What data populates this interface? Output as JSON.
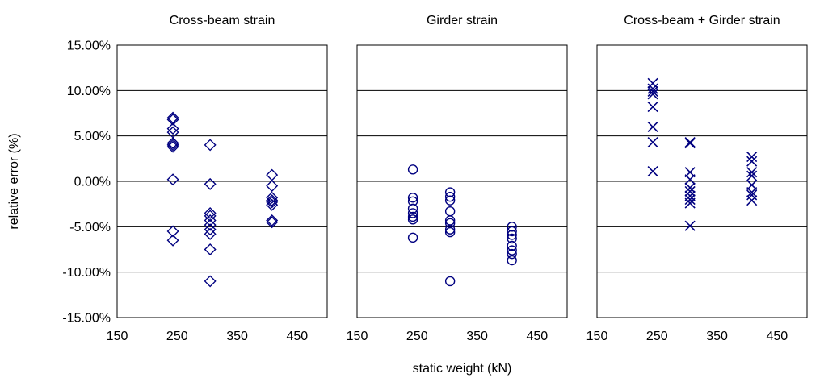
{
  "chart_data": {
    "type": "scatter",
    "xlabel": "static weight (kN)",
    "ylabel": "relative error (%)",
    "xlim": [
      150,
      500
    ],
    "ylim": [
      -15,
      15
    ],
    "xticks": [
      "150",
      "250",
      "350",
      "450"
    ],
    "yticks": [
      "15.00%",
      "10.00%",
      "5.00%",
      "0.00%",
      "-5.00%",
      "-10.00%",
      "-15.00%"
    ],
    "grid": "horizontal",
    "marker_color": "#000080",
    "panels": [
      {
        "title": "Cross-beam strain",
        "marker": "diamond",
        "points": [
          {
            "x": 243,
            "y": 7.0
          },
          {
            "x": 243,
            "y": 6.8
          },
          {
            "x": 243,
            "y": 5.8
          },
          {
            "x": 243,
            "y": 5.4
          },
          {
            "x": 243,
            "y": 4.2
          },
          {
            "x": 243,
            "y": 4.0
          },
          {
            "x": 243,
            "y": 3.8
          },
          {
            "x": 243,
            "y": 0.2
          },
          {
            "x": 243,
            "y": -5.5
          },
          {
            "x": 243,
            "y": -6.5
          },
          {
            "x": 305,
            "y": 4.0
          },
          {
            "x": 305,
            "y": -0.3
          },
          {
            "x": 305,
            "y": -3.5
          },
          {
            "x": 305,
            "y": -3.8
          },
          {
            "x": 305,
            "y": -4.3
          },
          {
            "x": 305,
            "y": -4.8
          },
          {
            "x": 305,
            "y": -5.3
          },
          {
            "x": 305,
            "y": -5.8
          },
          {
            "x": 305,
            "y": -7.5
          },
          {
            "x": 305,
            "y": -11.0
          },
          {
            "x": 408,
            "y": 0.7
          },
          {
            "x": 408,
            "y": -0.5
          },
          {
            "x": 408,
            "y": -1.8
          },
          {
            "x": 408,
            "y": -2.1
          },
          {
            "x": 408,
            "y": -2.3
          },
          {
            "x": 408,
            "y": -2.6
          },
          {
            "x": 408,
            "y": -4.3
          },
          {
            "x": 408,
            "y": -4.5
          }
        ]
      },
      {
        "title": "Girder strain",
        "marker": "circle",
        "points": [
          {
            "x": 243,
            "y": 1.3
          },
          {
            "x": 243,
            "y": -1.8
          },
          {
            "x": 243,
            "y": -2.2
          },
          {
            "x": 243,
            "y": -3.0
          },
          {
            "x": 243,
            "y": -3.5
          },
          {
            "x": 243,
            "y": -3.9
          },
          {
            "x": 243,
            "y": -4.2
          },
          {
            "x": 243,
            "y": -6.2
          },
          {
            "x": 305,
            "y": -1.2
          },
          {
            "x": 305,
            "y": -1.7
          },
          {
            "x": 305,
            "y": -2.1
          },
          {
            "x": 305,
            "y": -3.3
          },
          {
            "x": 305,
            "y": -4.3
          },
          {
            "x": 305,
            "y": -4.6
          },
          {
            "x": 305,
            "y": -5.3
          },
          {
            "x": 305,
            "y": -5.6
          },
          {
            "x": 305,
            "y": -11.0
          },
          {
            "x": 408,
            "y": -5.0
          },
          {
            "x": 408,
            "y": -5.5
          },
          {
            "x": 408,
            "y": -5.9
          },
          {
            "x": 408,
            "y": -6.3
          },
          {
            "x": 408,
            "y": -7.1
          },
          {
            "x": 408,
            "y": -7.6
          },
          {
            "x": 408,
            "y": -8.0
          },
          {
            "x": 408,
            "y": -8.7
          }
        ]
      },
      {
        "title": "Cross-beam + Girder strain",
        "marker": "x",
        "points": [
          {
            "x": 243,
            "y": 10.8
          },
          {
            "x": 243,
            "y": 10.2
          },
          {
            "x": 243,
            "y": 9.9
          },
          {
            "x": 243,
            "y": 9.6
          },
          {
            "x": 243,
            "y": 8.2
          },
          {
            "x": 243,
            "y": 6.0
          },
          {
            "x": 243,
            "y": 4.3
          },
          {
            "x": 243,
            "y": 1.1
          },
          {
            "x": 305,
            "y": 4.3
          },
          {
            "x": 305,
            "y": 4.2
          },
          {
            "x": 305,
            "y": 1.0
          },
          {
            "x": 305,
            "y": 0.2
          },
          {
            "x": 305,
            "y": -0.7
          },
          {
            "x": 305,
            "y": -1.1
          },
          {
            "x": 305,
            "y": -1.6
          },
          {
            "x": 305,
            "y": -2.0
          },
          {
            "x": 305,
            "y": -2.4
          },
          {
            "x": 305,
            "y": -4.9
          },
          {
            "x": 408,
            "y": 2.7
          },
          {
            "x": 408,
            "y": 2.2
          },
          {
            "x": 408,
            "y": 1.0
          },
          {
            "x": 408,
            "y": 0.6
          },
          {
            "x": 408,
            "y": -0.4
          },
          {
            "x": 408,
            "y": -1.2
          },
          {
            "x": 408,
            "y": -1.5
          },
          {
            "x": 408,
            "y": -2.1
          }
        ]
      }
    ]
  }
}
